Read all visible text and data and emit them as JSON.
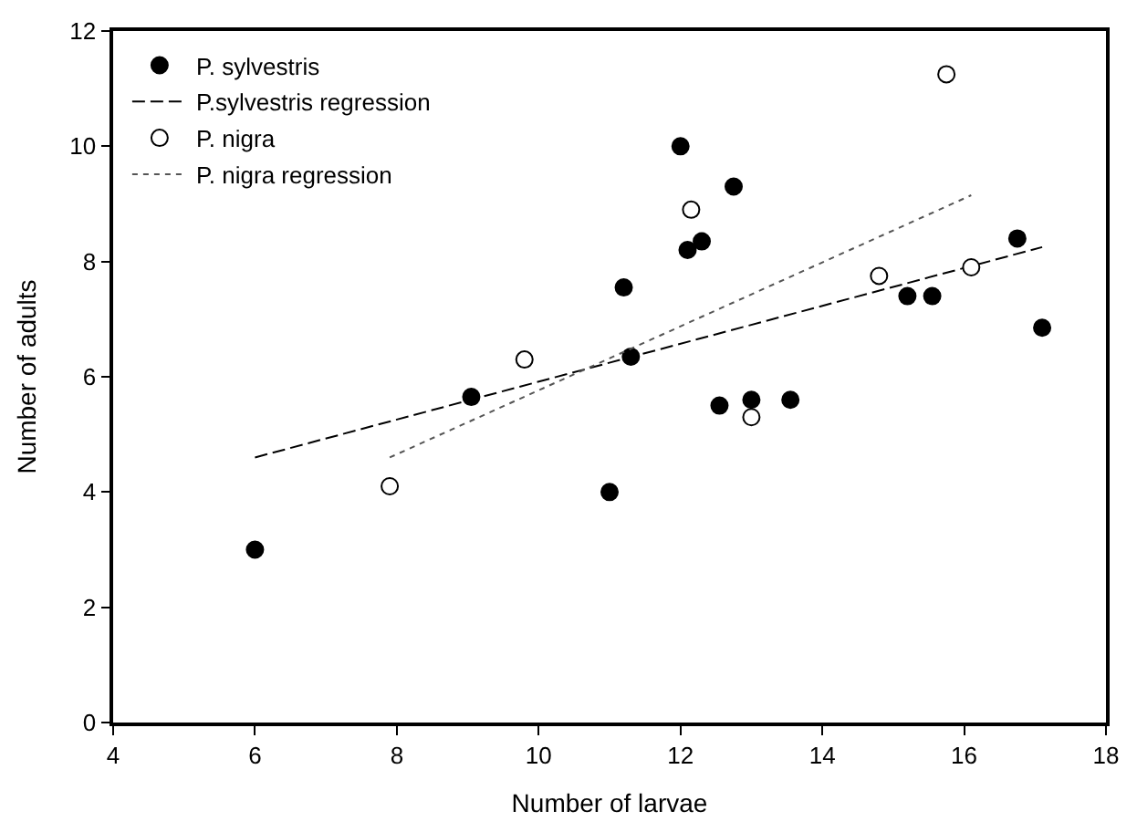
{
  "chart_data": {
    "type": "scatter",
    "xlabel": "Number of larvae",
    "ylabel": "Number of adults",
    "xlim": [
      4,
      18
    ],
    "xticks": [
      4,
      6,
      8,
      10,
      12,
      14,
      16,
      18
    ],
    "ylim": [
      0,
      12
    ],
    "yticks": [
      0,
      2,
      4,
      6,
      8,
      10,
      12
    ],
    "legend": "top left",
    "series": [
      {
        "name": "P. sylvestris",
        "color": "#000000",
        "marker": "circle",
        "x": [
          6,
          9.05,
          11,
          11.2,
          11.3,
          12,
          12.1,
          12.3,
          12.55,
          12.75,
          13,
          13.55,
          15.2,
          15.55,
          16.75,
          17.1
        ],
        "values": [
          3.0,
          5.65,
          4.0,
          7.55,
          6.35,
          10.0,
          8.2,
          8.35,
          5.5,
          9.3,
          5.6,
          5.6,
          7.4,
          7.4,
          8.4,
          6.85
        ]
      },
      {
        "name": "P.sylvestris regression",
        "type": "line",
        "color": "#000000",
        "line_style": "dashed",
        "x": [
          6,
          17.1
        ],
        "values": [
          4.6,
          8.25
        ]
      },
      {
        "name": "P. nigra",
        "color": "#ffffff",
        "marker": "circle",
        "x": [
          7.9,
          9.8,
          12.15,
          13,
          14.8,
          15.75,
          16.1
        ],
        "values": [
          4.1,
          6.3,
          8.9,
          5.3,
          7.75,
          11.25,
          7.9
        ]
      },
      {
        "name": "P. nigra regression",
        "type": "line",
        "color": "#555555",
        "line_style": "dotted",
        "x": [
          7.9,
          16.1
        ],
        "values": [
          4.6,
          9.15
        ]
      }
    ]
  }
}
